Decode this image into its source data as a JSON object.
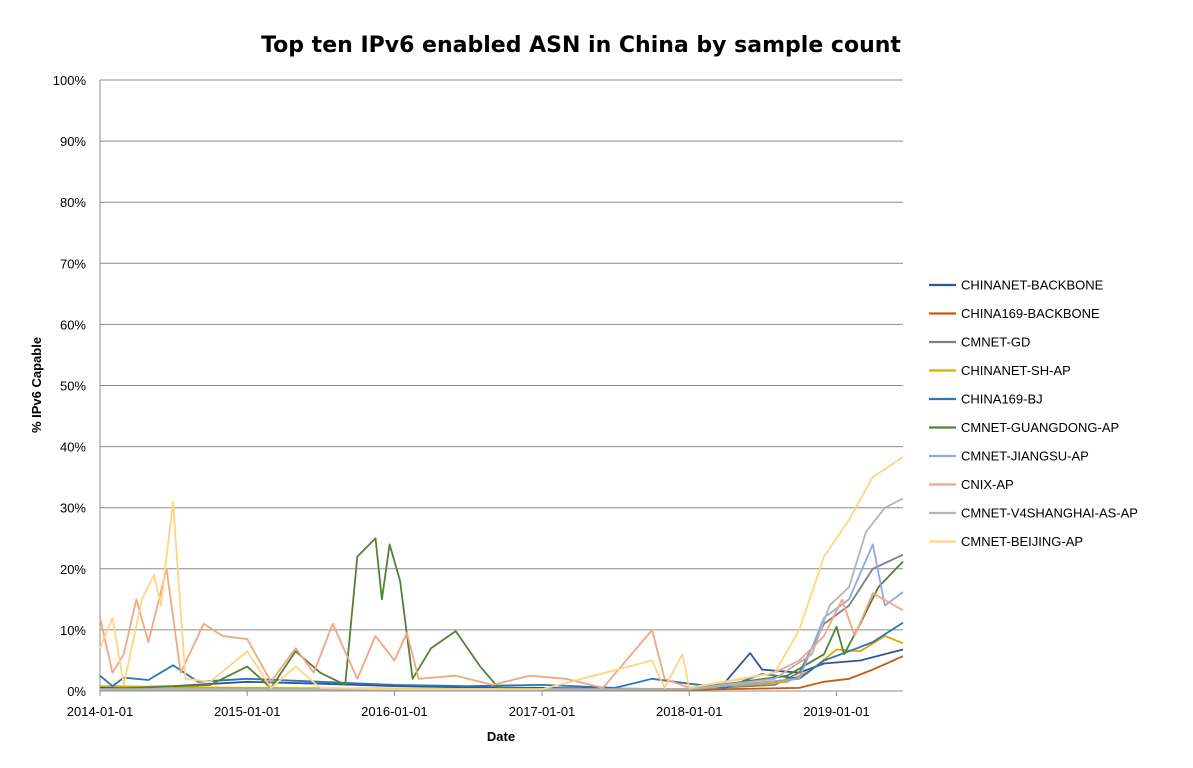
{
  "chart_data": {
    "type": "line",
    "title": "Top ten IPv6 enabled ASN in China by sample count",
    "xlabel": "Date",
    "ylabel": "% IPv6 Capable",
    "x_ticks": [
      "2014-01-01",
      "2015-01-01",
      "2016-01-01",
      "2017-01-01",
      "2018-01-01",
      "2019-01-01"
    ],
    "y_ticks": [
      "0%",
      "10%",
      "20%",
      "30%",
      "40%",
      "50%",
      "60%",
      "70%",
      "80%",
      "90%",
      "100%"
    ],
    "xlim": [
      "2014-01-01",
      "2019-06-15"
    ],
    "ylim": [
      0,
      100
    ],
    "grid": "horizontal",
    "legend_position": "right",
    "series": [
      {
        "name": "CHINANET-BACKBONE",
        "color": "#2f5597",
        "points": [
          [
            "2014-01-01",
            0.5
          ],
          [
            "2014-07-01",
            0.8
          ],
          [
            "2015-01-01",
            1.5
          ],
          [
            "2015-07-01",
            1.2
          ],
          [
            "2016-01-01",
            0.8
          ],
          [
            "2016-07-01",
            0.6
          ],
          [
            "2017-01-01",
            0.5
          ],
          [
            "2017-07-01",
            0.4
          ],
          [
            "2018-01-01",
            0.3
          ],
          [
            "2018-04-01",
            1.5
          ],
          [
            "2018-06-01",
            6.2
          ],
          [
            "2018-07-01",
            3.5
          ],
          [
            "2018-10-01",
            3.0
          ],
          [
            "2018-12-01",
            4.5
          ],
          [
            "2019-03-01",
            5.0
          ],
          [
            "2019-06-15",
            6.8
          ]
        ]
      },
      {
        "name": "CHINA169-BACKBONE",
        "color": "#c55a11",
        "points": [
          [
            "2014-01-01",
            0.3
          ],
          [
            "2015-01-01",
            0.3
          ],
          [
            "2016-01-01",
            0.3
          ],
          [
            "2017-01-01",
            0.2
          ],
          [
            "2018-01-01",
            0.2
          ],
          [
            "2018-10-01",
            0.5
          ],
          [
            "2018-12-01",
            1.5
          ],
          [
            "2019-02-01",
            2.0
          ],
          [
            "2019-04-01",
            3.5
          ],
          [
            "2019-06-15",
            5.7
          ]
        ]
      },
      {
        "name": "CMNET-GD",
        "color": "#7f7f7f",
        "points": [
          [
            "2014-01-01",
            0.2
          ],
          [
            "2015-01-01",
            0.2
          ],
          [
            "2016-01-01",
            0.3
          ],
          [
            "2017-01-01",
            0.2
          ],
          [
            "2018-01-01",
            0.3
          ],
          [
            "2018-08-01",
            1.0
          ],
          [
            "2018-10-01",
            3.0
          ],
          [
            "2018-12-01",
            11.0
          ],
          [
            "2019-02-01",
            14.0
          ],
          [
            "2019-04-01",
            20.0
          ],
          [
            "2019-06-15",
            22.3
          ]
        ]
      },
      {
        "name": "CHINANET-SH-AP",
        "color": "#e3a600",
        "points": [
          [
            "2014-01-01",
            0.8
          ],
          [
            "2015-01-01",
            0.5
          ],
          [
            "2016-01-01",
            0.4
          ],
          [
            "2017-01-01",
            0.3
          ],
          [
            "2018-01-01",
            0.3
          ],
          [
            "2018-09-01",
            1.5
          ],
          [
            "2018-11-01",
            3.5
          ],
          [
            "2019-01-01",
            6.8
          ],
          [
            "2019-03-01",
            6.5
          ],
          [
            "2019-05-01",
            9.0
          ],
          [
            "2019-06-15",
            7.8
          ]
        ]
      },
      {
        "name": "CHINA169-BJ",
        "color": "#2e75b6",
        "points": [
          [
            "2014-01-01",
            2.5
          ],
          [
            "2014-02-01",
            0.8
          ],
          [
            "2014-03-01",
            2.2
          ],
          [
            "2014-05-01",
            1.8
          ],
          [
            "2014-07-01",
            4.2
          ],
          [
            "2014-09-01",
            1.5
          ],
          [
            "2015-01-01",
            2.0
          ],
          [
            "2015-07-01",
            1.5
          ],
          [
            "2016-01-01",
            1.0
          ],
          [
            "2016-07-01",
            0.8
          ],
          [
            "2017-01-01",
            1.0
          ],
          [
            "2017-07-01",
            0.5
          ],
          [
            "2017-10-01",
            2.0
          ],
          [
            "2018-01-01",
            1.2
          ],
          [
            "2018-04-01",
            0.5
          ],
          [
            "2018-07-01",
            2.8
          ],
          [
            "2018-10-01",
            2.0
          ],
          [
            "2018-12-01",
            5.0
          ],
          [
            "2019-02-01",
            6.5
          ],
          [
            "2019-04-01",
            8.0
          ],
          [
            "2019-06-15",
            11.2
          ]
        ]
      },
      {
        "name": "CMNET-GUANGDONG-AP",
        "color": "#548235",
        "points": [
          [
            "2014-01-01",
            0.3
          ],
          [
            "2014-10-01",
            1.0
          ],
          [
            "2015-01-01",
            4.0
          ],
          [
            "2015-03-01",
            0.5
          ],
          [
            "2015-05-01",
            6.5
          ],
          [
            "2015-07-01",
            3.0
          ],
          [
            "2015-09-01",
            1.0
          ],
          [
            "2015-10-01",
            22.0
          ],
          [
            "2015-11-15",
            25.0
          ],
          [
            "2015-12-01",
            15.0
          ],
          [
            "2015-12-20",
            24.0
          ],
          [
            "2016-01-15",
            18.0
          ],
          [
            "2016-02-15",
            2.0
          ],
          [
            "2016-04-01",
            7.0
          ],
          [
            "2016-06-01",
            9.8
          ],
          [
            "2016-08-01",
            4.0
          ],
          [
            "2016-09-15",
            0.5
          ],
          [
            "2017-01-01",
            0.3
          ],
          [
            "2018-01-01",
            0.3
          ],
          [
            "2018-09-01",
            2.5
          ],
          [
            "2018-12-01",
            6.0
          ],
          [
            "2019-01-01",
            10.5
          ],
          [
            "2019-01-20",
            6.0
          ],
          [
            "2019-03-01",
            11.0
          ],
          [
            "2019-04-15",
            17.0
          ],
          [
            "2019-06-15",
            21.2
          ]
        ]
      },
      {
        "name": "CMNET-JIANGSU-AP",
        "color": "#8faadc",
        "points": [
          [
            "2014-01-01",
            0.2
          ],
          [
            "2015-01-01",
            0.2
          ],
          [
            "2016-01-01",
            0.2
          ],
          [
            "2017-01-01",
            0.2
          ],
          [
            "2018-01-01",
            0.3
          ],
          [
            "2018-10-01",
            2.0
          ],
          [
            "2018-12-01",
            12.0
          ],
          [
            "2019-02-01",
            15.0
          ],
          [
            "2019-04-01",
            24.0
          ],
          [
            "2019-05-01",
            14.0
          ],
          [
            "2019-06-15",
            16.2
          ]
        ]
      },
      {
        "name": "CNIX-AP",
        "color": "#f4a582",
        "points": [
          [
            "2014-01-01",
            12.0
          ],
          [
            "2014-02-01",
            3.0
          ],
          [
            "2014-03-01",
            6.0
          ],
          [
            "2014-04-01",
            15.0
          ],
          [
            "2014-05-01",
            8.0
          ],
          [
            "2014-06-15",
            20.0
          ],
          [
            "2014-07-20",
            3.0
          ],
          [
            "2014-09-15",
            11.0
          ],
          [
            "2014-11-01",
            9.0
          ],
          [
            "2015-01-01",
            8.5
          ],
          [
            "2015-03-01",
            1.5
          ],
          [
            "2015-05-01",
            7.0
          ],
          [
            "2015-06-15",
            3.0
          ],
          [
            "2015-08-01",
            11.0
          ],
          [
            "2015-10-01",
            2.0
          ],
          [
            "2015-11-15",
            9.0
          ],
          [
            "2016-01-01",
            5.0
          ],
          [
            "2016-02-01",
            9.5
          ],
          [
            "2016-03-01",
            2.0
          ],
          [
            "2016-06-01",
            2.5
          ],
          [
            "2016-09-01",
            1.0
          ],
          [
            "2016-12-01",
            2.5
          ],
          [
            "2017-03-01",
            2.0
          ],
          [
            "2017-06-01",
            0.5
          ],
          [
            "2017-10-01",
            10.0
          ],
          [
            "2017-11-01",
            2.0
          ],
          [
            "2018-01-01",
            0.5
          ],
          [
            "2018-04-01",
            1.5
          ],
          [
            "2018-08-01",
            3.0
          ],
          [
            "2018-10-01",
            5.0
          ],
          [
            "2018-12-01",
            9.0
          ],
          [
            "2019-01-15",
            15.0
          ],
          [
            "2019-02-15",
            9.0
          ],
          [
            "2019-04-01",
            16.0
          ],
          [
            "2019-06-15",
            13.2
          ]
        ]
      },
      {
        "name": "CMNET-V4SHANGHAI-AS-AP",
        "color": "#b4b4b4",
        "points": [
          [
            "2014-01-01",
            0.3
          ],
          [
            "2015-01-01",
            0.3
          ],
          [
            "2016-01-01",
            0.3
          ],
          [
            "2017-01-01",
            0.3
          ],
          [
            "2018-01-01",
            0.3
          ],
          [
            "2018-08-01",
            2.0
          ],
          [
            "2018-11-01",
            6.0
          ],
          [
            "2018-12-15",
            14.0
          ],
          [
            "2019-02-01",
            17.0
          ],
          [
            "2019-03-15",
            26.0
          ],
          [
            "2019-05-01",
            30.0
          ],
          [
            "2019-06-15",
            31.5
          ]
        ]
      },
      {
        "name": "CMNET-BEIJING-AP",
        "color": "#ffd57f",
        "points": [
          [
            "2014-01-01",
            7.0
          ],
          [
            "2014-02-01",
            12.0
          ],
          [
            "2014-03-01",
            1.0
          ],
          [
            "2014-04-15",
            15.0
          ],
          [
            "2014-05-15",
            19.0
          ],
          [
            "2014-06-01",
            14.0
          ],
          [
            "2014-07-01",
            31.0
          ],
          [
            "2014-08-01",
            2.0
          ],
          [
            "2014-10-01",
            1.5
          ],
          [
            "2015-01-01",
            6.5
          ],
          [
            "2015-03-01",
            0.5
          ],
          [
            "2015-05-01",
            4.0
          ],
          [
            "2015-07-01",
            0.5
          ],
          [
            "2016-01-01",
            0.3
          ],
          [
            "2017-01-01",
            0.3
          ],
          [
            "2017-10-01",
            5.0
          ],
          [
            "2017-11-01",
            0.5
          ],
          [
            "2017-12-15",
            6.0
          ],
          [
            "2018-01-01",
            0.5
          ],
          [
            "2018-08-01",
            3.0
          ],
          [
            "2018-10-01",
            10.0
          ],
          [
            "2018-12-01",
            22.0
          ],
          [
            "2019-02-01",
            28.0
          ],
          [
            "2019-04-01",
            35.0
          ],
          [
            "2019-06-15",
            38.3
          ]
        ]
      }
    ]
  }
}
